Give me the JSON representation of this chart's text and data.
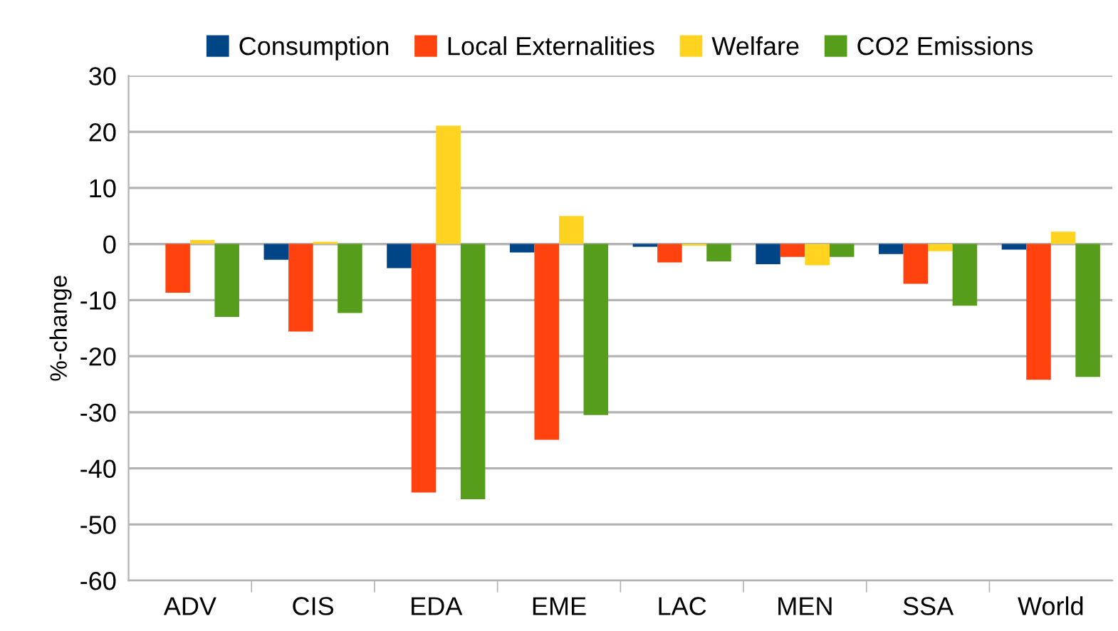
{
  "chart_data": {
    "type": "bar",
    "ylabel": "%-change",
    "categories": [
      "ADV",
      "CIS",
      "EDA",
      "EME",
      "LAC",
      "MEN",
      "SSA",
      "World"
    ],
    "series": [
      {
        "name": "Consumption",
        "color": "#004586",
        "values": [
          0,
          -2.8,
          -4.3,
          -1.5,
          -0.5,
          -3.6,
          -1.8,
          -1.0
        ]
      },
      {
        "name": "Local Externalities",
        "color": "#ff420e",
        "values": [
          -8.7,
          -15.6,
          -44.3,
          -34.9,
          -3.3,
          -2.3,
          -7.1,
          -24.2
        ]
      },
      {
        "name": "Welfare",
        "color": "#ffd320",
        "values": [
          0.7,
          0.4,
          21.1,
          5.0,
          -0.3,
          -3.8,
          -1.3,
          2.2
        ]
      },
      {
        "name": "CO2 Emissions",
        "color": "#579d1c",
        "values": [
          -13.0,
          -12.3,
          -45.5,
          -30.5,
          -3.1,
          -2.3,
          -11.0,
          -23.7
        ]
      }
    ],
    "ylim": [
      -60,
      30
    ],
    "yticks": [
      -60,
      -50,
      -40,
      -30,
      -20,
      -10,
      0,
      10,
      20,
      30
    ],
    "grid": "y",
    "legend": "top"
  }
}
